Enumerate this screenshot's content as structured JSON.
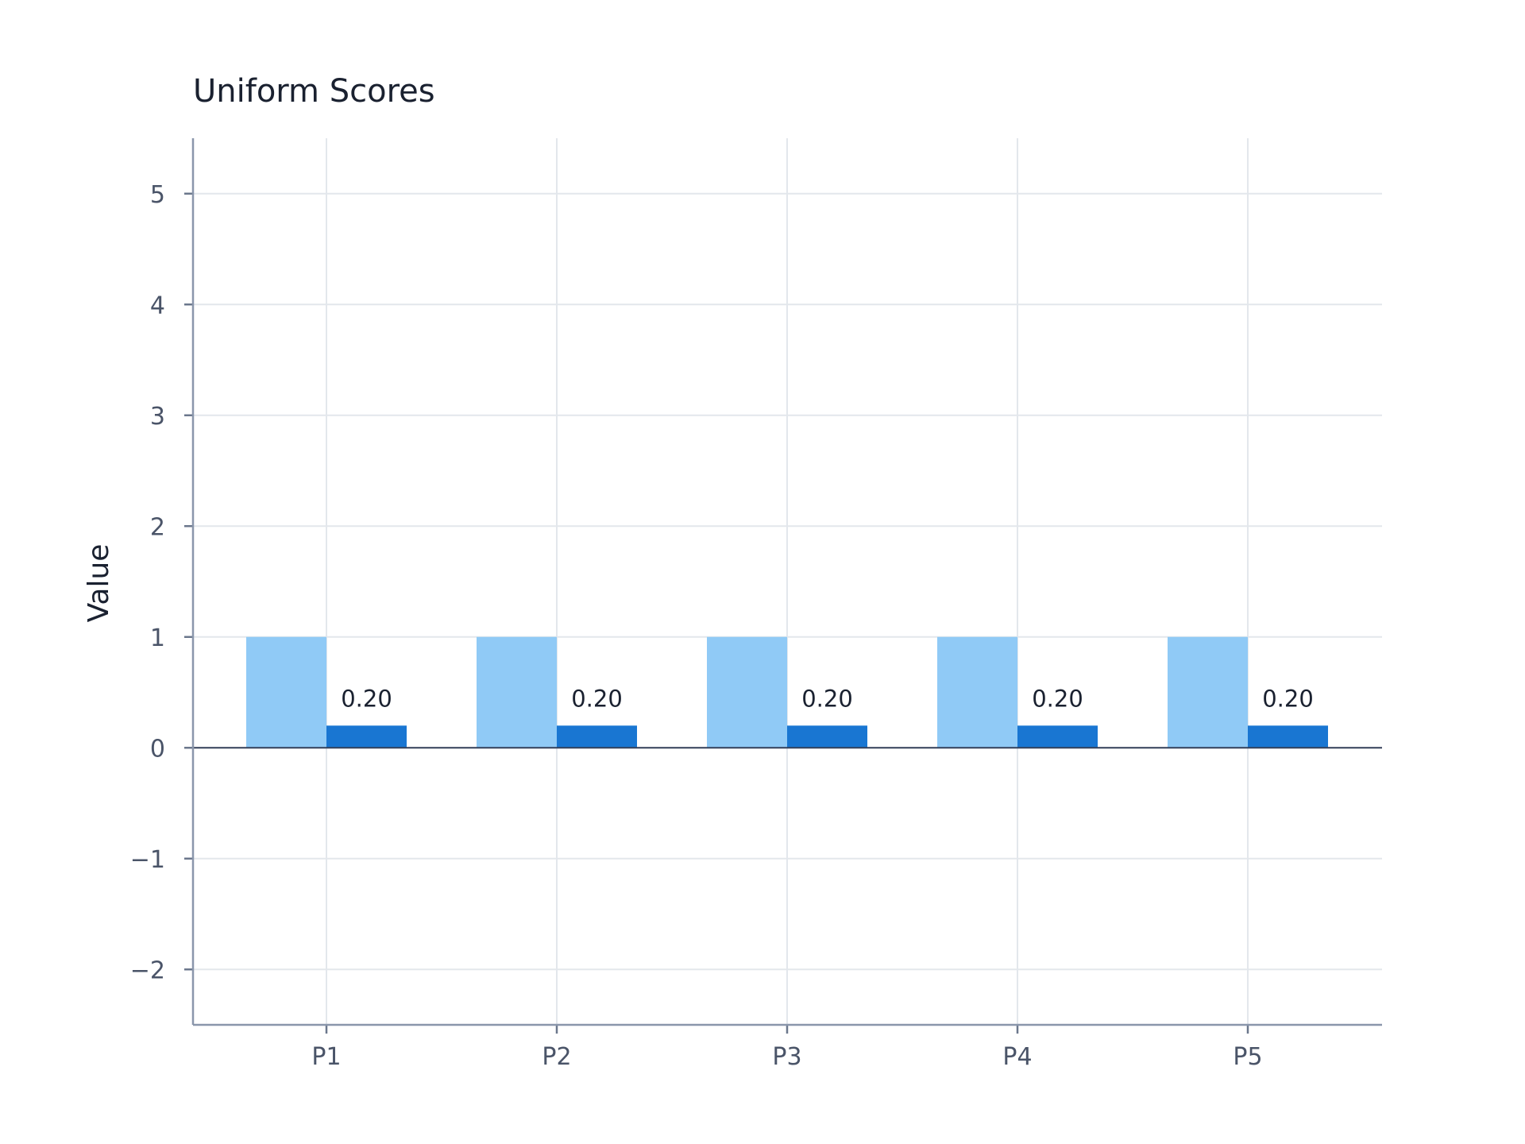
{
  "chart_data": {
    "type": "bar",
    "title": "Uniform Scores",
    "xlabel": "",
    "ylabel": "Value",
    "categories": [
      "P1",
      "P2",
      "P3",
      "P4",
      "P5"
    ],
    "series": [
      {
        "values": [
          1,
          1,
          1,
          1,
          1
        ],
        "color": "#90caf6"
      },
      {
        "values": [
          0.2,
          0.2,
          0.2,
          0.2,
          0.2
        ],
        "color": "#1976d2",
        "data_labels": [
          "0.20",
          "0.20",
          "0.20",
          "0.20",
          "0.20"
        ]
      }
    ],
    "ylim": [
      -2.5,
      5.5
    ],
    "yticks": [
      -2,
      -1,
      0,
      1,
      2,
      3,
      4,
      5
    ],
    "ytick_labels": [
      "−2",
      "−1",
      "0",
      "1",
      "2",
      "3",
      "4",
      "5"
    ],
    "grid": true,
    "legend": "none"
  }
}
